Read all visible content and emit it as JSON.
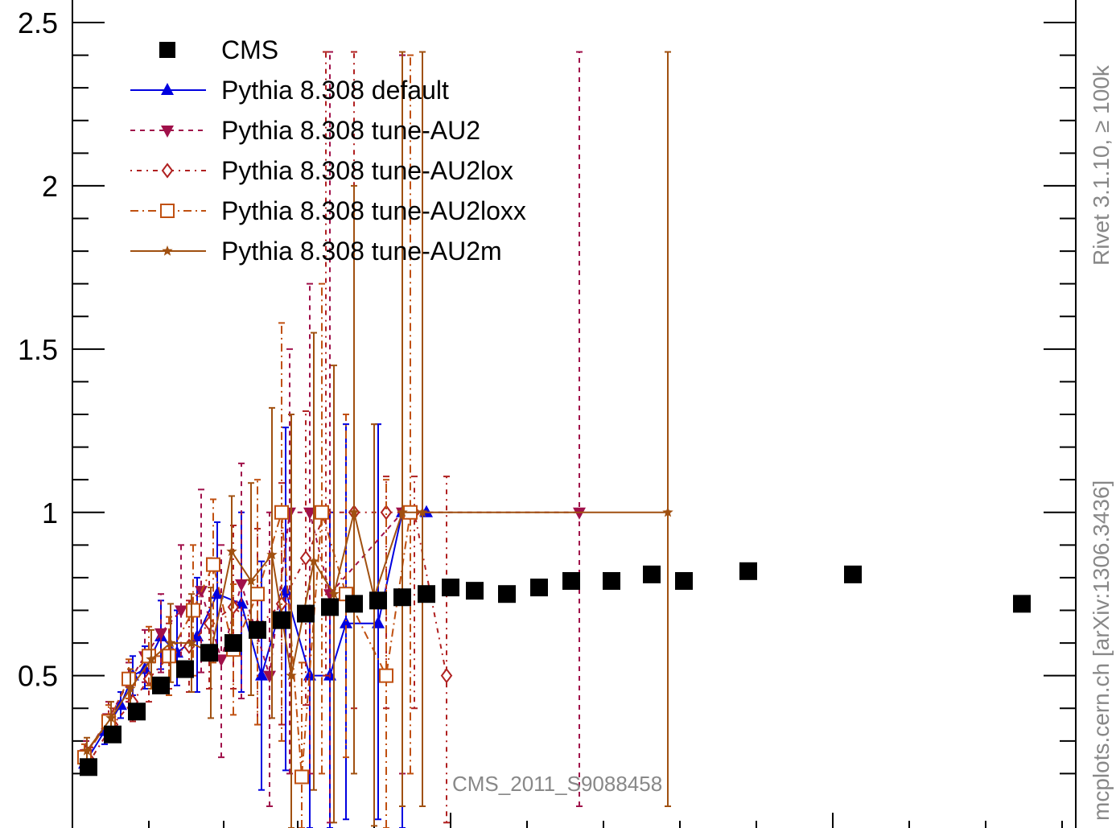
{
  "chart_data": {
    "type": "line",
    "title": "",
    "xlabel": "",
    "ylabel": "",
    "ylim": [
      0.1,
      2.6
    ],
    "yticks": [
      0.5,
      1,
      1.5,
      2,
      2.5
    ],
    "ytick_labels": [
      "0.5",
      "1",
      "1.5",
      "2",
      "2.5"
    ],
    "grid": false,
    "legend_position": "top-left",
    "annotation": "CMS_2011_S9088458",
    "side_label_top": "Rivet 3.1.10, ≥ 100k",
    "side_label_bottom": "mcplots.cern.ch [arXiv:1306.3436]",
    "series": [
      {
        "name": "CMS",
        "color": "#000000",
        "marker": "square",
        "dash": "none",
        "line": false,
        "x": [
          110,
          140,
          170,
          200,
          230,
          260,
          290,
          320,
          350,
          380,
          410,
          440,
          470,
          500,
          530,
          560,
          590,
          630,
          670,
          710,
          760,
          810,
          850,
          930,
          1060,
          1270
        ],
        "y": [
          0.22,
          0.32,
          0.39,
          0.47,
          0.52,
          0.57,
          0.6,
          0.64,
          0.67,
          0.69,
          0.71,
          0.72,
          0.73,
          0.74,
          0.75,
          0.77,
          0.76,
          0.75,
          0.77,
          0.79,
          0.79,
          0.81,
          0.79,
          0.82,
          0.81,
          0.72
        ]
      },
      {
        "name": "Pythia 8.308 default",
        "color": "#0000e0",
        "marker": "triangle-up",
        "dash": "none",
        "line": true,
        "x": [
          105,
          130,
          150,
          165,
          180,
          200,
          220,
          245,
          270,
          300,
          325,
          355,
          385,
          410,
          430,
          470,
          500,
          530
        ],
        "y": [
          0.23,
          0.33,
          0.41,
          0.5,
          0.52,
          0.62,
          0.57,
          0.62,
          0.75,
          0.72,
          0.5,
          0.76,
          0.5,
          0.5,
          0.66,
          0.66,
          1.0,
          1.0
        ],
        "err_lo": [
          0.03,
          0.04,
          0.04,
          0.06,
          0.06,
          0.1,
          0.1,
          0.17,
          0.2,
          0.27,
          0.35,
          0.55,
          0.5,
          0.5,
          0.6,
          0.6,
          1.3,
          0.0
        ],
        "err_hi": [
          0.03,
          0.04,
          0.04,
          0.06,
          0.07,
          0.11,
          0.13,
          0.18,
          0.22,
          0.28,
          0.35,
          0.5,
          0.2,
          0.5,
          0.61,
          0.61,
          1.4,
          0.0
        ]
      },
      {
        "name": "Pythia 8.308 tune-AU2",
        "color": "#a0104a",
        "marker": "triangle-down",
        "dash": "6,6",
        "line": true,
        "x": [
          107,
          135,
          160,
          180,
          200,
          225,
          250,
          275,
          300,
          335,
          360,
          385,
          410,
          500,
          720
        ],
        "y": [
          0.26,
          0.37,
          0.48,
          0.56,
          0.63,
          0.7,
          0.76,
          0.55,
          0.78,
          0.5,
          1.0,
          1.0,
          0.75,
          1.0,
          1.0
        ],
        "err_lo": [
          0.04,
          0.05,
          0.06,
          0.08,
          0.12,
          0.2,
          0.25,
          0.3,
          0.35,
          0.4,
          0.8,
          0.8,
          0.7,
          0.8,
          0.9
        ],
        "err_hi": [
          0.04,
          0.05,
          0.06,
          0.08,
          0.12,
          0.2,
          0.31,
          0.35,
          0.37,
          0.5,
          0.5,
          0.7,
          1.66,
          1.4,
          1.41
        ]
      },
      {
        "name": "Pythia 8.308 tune-AU2lox",
        "color": "#b02020",
        "marker": "diamond-open",
        "dash": "2,6,6,6",
        "line": true,
        "x": [
          112,
          140,
          165,
          185,
          210,
          235,
          260,
          290,
          320,
          350,
          380,
          405,
          440,
          480,
          515,
          555
        ],
        "y": [
          0.24,
          0.35,
          0.42,
          0.49,
          0.56,
          0.59,
          0.66,
          0.71,
          0.65,
          0.72,
          0.86,
          1.0,
          1.0,
          1.0,
          1.0,
          0.5
        ],
        "err_lo": [
          0.04,
          0.05,
          0.06,
          0.07,
          0.1,
          0.14,
          0.2,
          0.25,
          0.3,
          0.37,
          0.45,
          0.5,
          0.6,
          0.6,
          0.6,
          0.45
        ],
        "err_hi": [
          0.04,
          0.05,
          0.06,
          0.07,
          0.1,
          0.14,
          0.2,
          0.25,
          0.3,
          0.37,
          0.45,
          1.41,
          1.41,
          0.11,
          0.11,
          0.61
        ]
      },
      {
        "name": "Pythia 8.308 tune-AU2loxx",
        "color": "#c05010",
        "marker": "square-open",
        "dash": "10,5,2,5",
        "line": true,
        "x": [
          105,
          135,
          160,
          185,
          210,
          240,
          265,
          290,
          320,
          350,
          375,
          400,
          430,
          480,
          510
        ],
        "y": [
          0.25,
          0.36,
          0.49,
          0.56,
          0.56,
          0.7,
          0.84,
          0.58,
          0.75,
          1.0,
          0.19,
          1.0,
          0.75,
          0.5,
          1.0
        ],
        "err_lo": [
          0.04,
          0.05,
          0.06,
          0.09,
          0.12,
          0.2,
          0.3,
          0.2,
          0.4,
          0.7,
          0.19,
          0.8,
          0.5,
          0.5,
          0.8
        ],
        "err_hi": [
          0.04,
          0.05,
          0.06,
          0.09,
          0.12,
          0.2,
          0.2,
          0.2,
          0.35,
          0.58,
          0.35,
          0.7,
          0.55,
          0.6,
          1.4
        ]
      },
      {
        "name": "Pythia 8.308 tune-AU2m",
        "color": "#a05010",
        "marker": "star",
        "dash": "none",
        "line": true,
        "x": [
          108,
          138,
          162,
          188,
          212,
          238,
          262,
          288,
          312,
          338,
          362,
          390,
          415,
          440,
          465,
          500,
          525,
          830
        ],
        "y": [
          0.27,
          0.37,
          0.46,
          0.55,
          0.6,
          0.6,
          0.57,
          0.88,
          0.79,
          0.87,
          0.5,
          0.85,
          0.75,
          1.0,
          0.74,
          1.0,
          1.0,
          1.0
        ],
        "err_lo": [
          0.04,
          0.05,
          0.06,
          0.09,
          0.12,
          0.15,
          0.2,
          0.3,
          0.35,
          0.5,
          0.5,
          0.7,
          0.7,
          0.8,
          0.7,
          0.9,
          0.9,
          0.9
        ],
        "err_hi": [
          0.04,
          0.05,
          0.06,
          0.09,
          0.12,
          0.15,
          0.2,
          0.17,
          0.3,
          0.45,
          0.8,
          0.7,
          0.7,
          1.0,
          0.53,
          1.41,
          1.41,
          1.41
        ]
      }
    ]
  }
}
